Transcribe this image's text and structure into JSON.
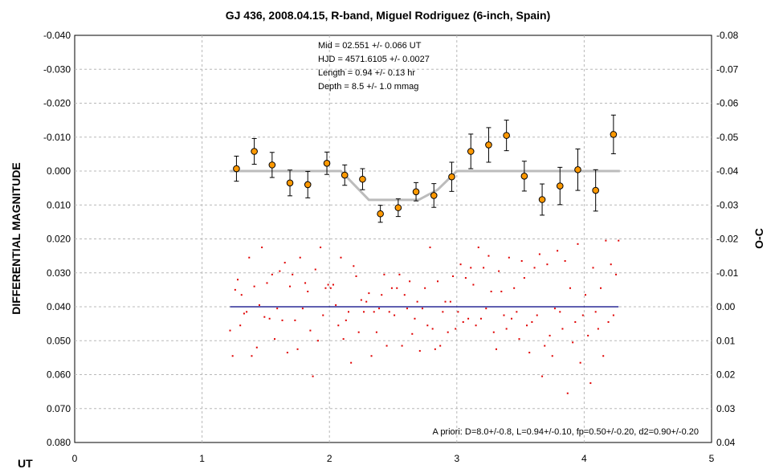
{
  "chart_data": {
    "type": "scatter",
    "title": "GJ 436, 2008.04.15, R-band, Miguel Rodriguez (6-inch, Spain)",
    "xlabel": "UT",
    "ylabel": "DIFFERENTIAL MAGNITUDE",
    "y2label": "O-C",
    "xlim": [
      0,
      5
    ],
    "ylim": [
      -0.04,
      0.08
    ],
    "y_inverted": true,
    "y2lim": [
      -0.08,
      0.04
    ],
    "grid": true,
    "x_ticks": [
      "0",
      "1",
      "2",
      "3",
      "4",
      "5"
    ],
    "y_ticks": [
      "-0.040",
      "-0.030",
      "-0.020",
      "-0.010",
      "0.000",
      "0.010",
      "0.020",
      "0.030",
      "0.040",
      "0.050",
      "0.060",
      "0.070",
      "0.080"
    ],
    "y2_ticks": [
      "-0.08",
      "-0.07",
      "-0.06",
      "-0.05",
      "-0.04",
      "-0.03",
      "-0.02",
      "-0.01",
      "0.00",
      "0.01",
      "0.02",
      "0.03",
      "0.04"
    ],
    "info_lines": [
      "Mid  = 02.551 +/- 0.066 UT",
      "HJD = 4571.6105 +/- 0.0027",
      "Length = 0.94 +/- 0.13 hr",
      "Depth = 8.5 +/- 1.0 mmag"
    ],
    "apriori": "A priori: D=8.0+/-0.8, L=0.94+/-0.10, fp=0.50+/-0.20, d2=0.90+/-0.20",
    "binned": {
      "x": [
        1.27,
        1.41,
        1.55,
        1.69,
        1.83,
        1.98,
        2.12,
        2.26,
        2.4,
        2.54,
        2.68,
        2.82,
        2.96,
        3.11,
        3.25,
        3.39,
        3.53,
        3.67,
        3.81,
        3.95,
        4.09,
        4.23
      ],
      "y": [
        -0.0007,
        -0.0058,
        -0.0018,
        0.0035,
        0.004,
        -0.0023,
        0.0012,
        0.0024,
        0.0126,
        0.0108,
        0.0061,
        0.0072,
        0.0017,
        -0.0058,
        -0.0077,
        -0.0105,
        0.0015,
        0.0084,
        0.0044,
        -0.0004,
        0.0057,
        -0.0108
      ],
      "err": [
        0.0037,
        0.0038,
        0.0037,
        0.0038,
        0.0039,
        0.0033,
        0.003,
        0.0031,
        0.0025,
        0.0026,
        0.0027,
        0.0035,
        0.0043,
        0.0051,
        0.0051,
        0.0045,
        0.0044,
        0.0046,
        0.0055,
        0.0061,
        0.0061,
        0.0057
      ]
    },
    "model": {
      "x": [
        1.22,
        2.09,
        2.31,
        2.45,
        2.7,
        2.85,
        3.0,
        4.28
      ],
      "y": [
        0.0,
        0.0,
        0.0085,
        0.0085,
        0.0085,
        0.0055,
        0.0,
        0.0
      ]
    },
    "oc_reference": 0.0,
    "oc_points": {
      "x": [
        1.22,
        1.24,
        1.26,
        1.28,
        1.3,
        1.31,
        1.33,
        1.35,
        1.37,
        1.39,
        1.41,
        1.43,
        1.45,
        1.47,
        1.49,
        1.51,
        1.53,
        1.55,
        1.57,
        1.59,
        1.61,
        1.63,
        1.65,
        1.67,
        1.69,
        1.71,
        1.73,
        1.75,
        1.77,
        1.79,
        1.81,
        1.83,
        1.85,
        1.87,
        1.89,
        1.91,
        1.93,
        1.95,
        1.97,
        1.99,
        2.01,
        2.03,
        2.05,
        2.07,
        2.09,
        2.11,
        2.13,
        2.15,
        2.17,
        2.19,
        2.21,
        2.23,
        2.25,
        2.27,
        2.29,
        2.31,
        2.33,
        2.35,
        2.37,
        2.39,
        2.41,
        2.43,
        2.45,
        2.47,
        2.49,
        2.51,
        2.53,
        2.55,
        2.57,
        2.59,
        2.61,
        2.63,
        2.65,
        2.67,
        2.69,
        2.71,
        2.73,
        2.75,
        2.77,
        2.79,
        2.81,
        2.83,
        2.85,
        2.87,
        2.89,
        2.91,
        2.93,
        2.95,
        2.97,
        2.99,
        3.01,
        3.03,
        3.05,
        3.07,
        3.09,
        3.11,
        3.13,
        3.15,
        3.17,
        3.19,
        3.21,
        3.23,
        3.25,
        3.27,
        3.29,
        3.31,
        3.33,
        3.35,
        3.37,
        3.39,
        3.41,
        3.43,
        3.45,
        3.47,
        3.49,
        3.51,
        3.53,
        3.55,
        3.57,
        3.59,
        3.61,
        3.63,
        3.65,
        3.67,
        3.69,
        3.71,
        3.73,
        3.75,
        3.77,
        3.79,
        3.81,
        3.83,
        3.85,
        3.87,
        3.89,
        3.91,
        3.93,
        3.95,
        3.97,
        3.99,
        4.01,
        4.03,
        4.05,
        4.07,
        4.09,
        4.11,
        4.13,
        4.15,
        4.17,
        4.19,
        4.21,
        4.23,
        4.25,
        4.27
      ],
      "y": [
        0.007,
        0.0145,
        -0.005,
        -0.008,
        0.0055,
        -0.0035,
        0.002,
        0.0015,
        -0.0145,
        0.0145,
        -0.006,
        0.012,
        -0.0005,
        -0.0175,
        0.003,
        -0.007,
        0.0035,
        -0.0095,
        0.0095,
        0.0005,
        -0.0105,
        0.004,
        -0.013,
        0.0135,
        -0.006,
        -0.0095,
        0.004,
        0.0125,
        -0.0145,
        0.0005,
        -0.007,
        -0.0045,
        0.007,
        0.0205,
        -0.011,
        0.01,
        -0.0175,
        0.0025,
        -0.0055,
        -0.0065,
        -0.0055,
        -0.0065,
        -0.0005,
        0.0055,
        -0.0145,
        0.0095,
        0.004,
        0.0015,
        0.0165,
        -0.012,
        -0.009,
        0.0075,
        -0.002,
        0.0015,
        -0.0015,
        -0.004,
        0.0145,
        0.0015,
        0.0075,
        0.0005,
        -0.0035,
        -0.0095,
        0.0115,
        0.0015,
        -0.0055,
        0.0025,
        -0.0055,
        -0.0095,
        0.0115,
        -0.0035,
        0.0005,
        -0.0075,
        0.008,
        0.0035,
        -0.0015,
        0.013,
        0.0005,
        -0.0055,
        0.0055,
        -0.0175,
        0.0065,
        0.0125,
        -0.0075,
        0.0115,
        0.0015,
        -0.0015,
        0.0075,
        -0.0015,
        -0.009,
        0.0065,
        0.0015,
        -0.0125,
        0.0045,
        -0.0085,
        0.0035,
        -0.0115,
        -0.0065,
        0.0055,
        -0.0175,
        0.0035,
        -0.0115,
        0.0005,
        -0.015,
        -0.0045,
        0.0075,
        0.0125,
        -0.0105,
        -0.0045,
        0.0025,
        0.0065,
        -0.0145,
        0.0035,
        -0.0055,
        0.0015,
        0.0095,
        -0.0135,
        -0.0085,
        0.0055,
        0.0135,
        0.0045,
        -0.0115,
        0.0025,
        -0.0155,
        0.0205,
        0.0115,
        -0.0125,
        0.0085,
        0.0145,
        0.0005,
        -0.0165,
        0.0015,
        0.0065,
        -0.0135,
        0.0255,
        -0.0055,
        0.0105,
        0.0045,
        -0.0185,
        0.0165,
        0.0025,
        -0.0035,
        0.0085,
        0.0225,
        -0.0115,
        0.0015,
        0.0065,
        -0.0055,
        0.0145,
        -0.0195,
        0.0045,
        -0.0125,
        0.0025,
        -0.0095,
        -0.0195
      ]
    }
  }
}
